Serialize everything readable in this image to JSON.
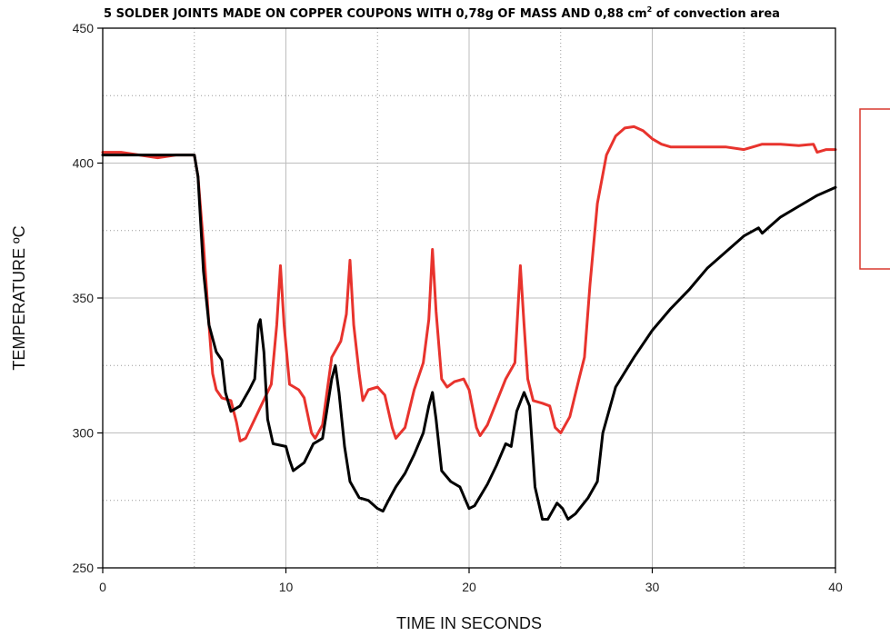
{
  "chart_data": {
    "type": "line",
    "title_main": "5 SOLDER JOINTS MADE ON COPPER COUPONS WITH 0,78g OF MASS AND 0,88 cm",
    "title_sup": "2",
    "title_tail": " of convection area",
    "xlabel": "TIME IN SECONDS",
    "ylabel": "TEMPERATURE ºC",
    "xlim": [
      0,
      40
    ],
    "ylim": [
      250,
      450
    ],
    "x_ticks": [
      "0",
      "10",
      "20",
      "30",
      "40"
    ],
    "y_ticks": [
      "250",
      "300",
      "350",
      "400",
      "450"
    ],
    "grid": true,
    "series": [
      {
        "color": "#e8332d",
        "points": [
          [
            0,
            404
          ],
          [
            1,
            404
          ],
          [
            2,
            403
          ],
          [
            3,
            402
          ],
          [
            4,
            403
          ],
          [
            5,
            403
          ],
          [
            5.2,
            395
          ],
          [
            5.5,
            370
          ],
          [
            5.8,
            340
          ],
          [
            6,
            322
          ],
          [
            6.2,
            316
          ],
          [
            6.5,
            313
          ],
          [
            7,
            312
          ],
          [
            7.3,
            304
          ],
          [
            7.5,
            297
          ],
          [
            7.8,
            298
          ],
          [
            8.5,
            308
          ],
          [
            9.2,
            318
          ],
          [
            9.5,
            340
          ],
          [
            9.7,
            362
          ],
          [
            9.9,
            340
          ],
          [
            10.2,
            318
          ],
          [
            10.7,
            316
          ],
          [
            11,
            313
          ],
          [
            11.4,
            300
          ],
          [
            11.6,
            298
          ],
          [
            12,
            303
          ],
          [
            12.5,
            328
          ],
          [
            13,
            334
          ],
          [
            13.3,
            344
          ],
          [
            13.5,
            364
          ],
          [
            13.7,
            340
          ],
          [
            14,
            322
          ],
          [
            14.2,
            312
          ],
          [
            14.5,
            316
          ],
          [
            15,
            317
          ],
          [
            15.4,
            314
          ],
          [
            15.8,
            302
          ],
          [
            16,
            298
          ],
          [
            16.5,
            302
          ],
          [
            17,
            316
          ],
          [
            17.5,
            326
          ],
          [
            17.8,
            342
          ],
          [
            18,
            368
          ],
          [
            18.2,
            345
          ],
          [
            18.5,
            320
          ],
          [
            18.8,
            317
          ],
          [
            19.2,
            319
          ],
          [
            19.7,
            320
          ],
          [
            20,
            316
          ],
          [
            20.4,
            302
          ],
          [
            20.6,
            299
          ],
          [
            21,
            303
          ],
          [
            22,
            320
          ],
          [
            22.5,
            326
          ],
          [
            22.8,
            362
          ],
          [
            23,
            340
          ],
          [
            23.2,
            320
          ],
          [
            23.5,
            312
          ],
          [
            24,
            311
          ],
          [
            24.4,
            310
          ],
          [
            24.7,
            302
          ],
          [
            25,
            300
          ],
          [
            25.5,
            306
          ],
          [
            26,
            320
          ],
          [
            26.3,
            328
          ],
          [
            26.6,
            355
          ],
          [
            27,
            385
          ],
          [
            27.5,
            403
          ],
          [
            28,
            410
          ],
          [
            28.5,
            413
          ],
          [
            29,
            413.5
          ],
          [
            29.5,
            412
          ],
          [
            30,
            409
          ],
          [
            30.5,
            407
          ],
          [
            31,
            406
          ],
          [
            32,
            406
          ],
          [
            33,
            406
          ],
          [
            34,
            406
          ],
          [
            35,
            405
          ],
          [
            35.5,
            406
          ],
          [
            36,
            407
          ],
          [
            37,
            407
          ],
          [
            38,
            406.5
          ],
          [
            38.8,
            407
          ],
          [
            39,
            404
          ],
          [
            39.5,
            405
          ],
          [
            40,
            405
          ]
        ]
      },
      {
        "color": "#000000",
        "points": [
          [
            0,
            403
          ],
          [
            2,
            403
          ],
          [
            4,
            403
          ],
          [
            5,
            403
          ],
          [
            5.2,
            395
          ],
          [
            5.5,
            360
          ],
          [
            5.8,
            340
          ],
          [
            6.2,
            330
          ],
          [
            6.5,
            327
          ],
          [
            6.7,
            315
          ],
          [
            7,
            308
          ],
          [
            7.5,
            310
          ],
          [
            8,
            316
          ],
          [
            8.3,
            320
          ],
          [
            8.5,
            340
          ],
          [
            8.6,
            342
          ],
          [
            8.8,
            330
          ],
          [
            9,
            305
          ],
          [
            9.3,
            296
          ],
          [
            10,
            295
          ],
          [
            10.2,
            290
          ],
          [
            10.4,
            286
          ],
          [
            11,
            289
          ],
          [
            11.5,
            296
          ],
          [
            12,
            298
          ],
          [
            12.5,
            320
          ],
          [
            12.7,
            325
          ],
          [
            12.9,
            315
          ],
          [
            13.2,
            295
          ],
          [
            13.5,
            282
          ],
          [
            14,
            276
          ],
          [
            14.5,
            275
          ],
          [
            15,
            272
          ],
          [
            15.3,
            271
          ],
          [
            15.6,
            275
          ],
          [
            16,
            280
          ],
          [
            16.5,
            285
          ],
          [
            17,
            292
          ],
          [
            17.5,
            300
          ],
          [
            17.8,
            310
          ],
          [
            18,
            315
          ],
          [
            18.2,
            305
          ],
          [
            18.5,
            286
          ],
          [
            19,
            282
          ],
          [
            19.5,
            280
          ],
          [
            20,
            272
          ],
          [
            20.3,
            273
          ],
          [
            21,
            281
          ],
          [
            21.5,
            288
          ],
          [
            22,
            296
          ],
          [
            22.3,
            295
          ],
          [
            22.6,
            308
          ],
          [
            23,
            315
          ],
          [
            23.3,
            310
          ],
          [
            23.6,
            280
          ],
          [
            24,
            268
          ],
          [
            24.3,
            268
          ],
          [
            24.8,
            274
          ],
          [
            25.1,
            272
          ],
          [
            25.4,
            268
          ],
          [
            25.8,
            270
          ],
          [
            26.5,
            276
          ],
          [
            27,
            282
          ],
          [
            27.3,
            300
          ],
          [
            28,
            317
          ],
          [
            29,
            328
          ],
          [
            30,
            338
          ],
          [
            31,
            346
          ],
          [
            32,
            353
          ],
          [
            33,
            361
          ],
          [
            34,
            367
          ],
          [
            35,
            373
          ],
          [
            35.8,
            376
          ],
          [
            36,
            374
          ],
          [
            36.5,
            377
          ],
          [
            37,
            380
          ],
          [
            38,
            384
          ],
          [
            39,
            388
          ],
          [
            40,
            391
          ]
        ]
      }
    ]
  }
}
